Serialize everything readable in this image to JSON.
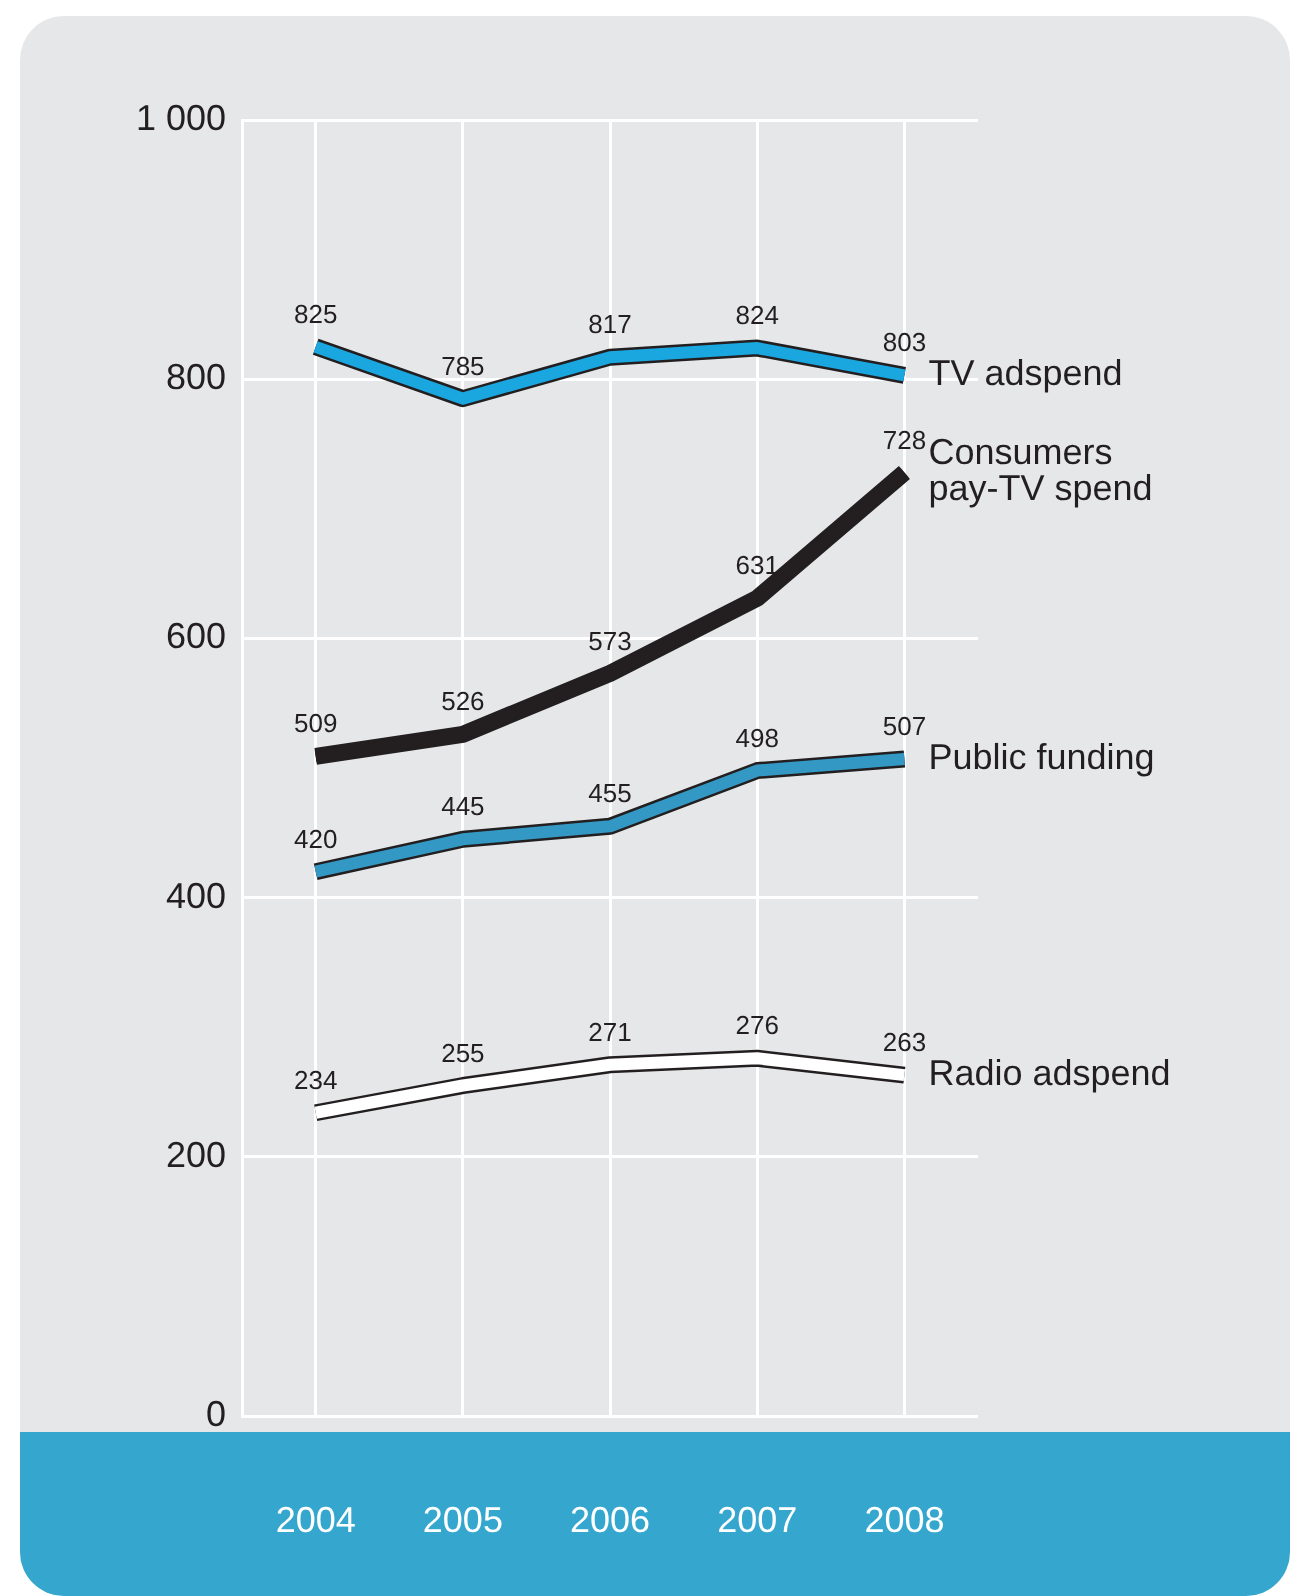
{
  "chart_data": {
    "type": "line",
    "categories": [
      "2004",
      "2005",
      "2006",
      "2007",
      "2008"
    ],
    "series": [
      {
        "name": "TV adspend",
        "color": "#1aa7e0",
        "values": [
          825,
          785,
          817,
          824,
          803
        ]
      },
      {
        "name": "Consumers pay-TV spend",
        "color": "#231f20",
        "values": [
          509,
          526,
          573,
          631,
          728
        ]
      },
      {
        "name": "Public funding",
        "color": "#3399c4",
        "values": [
          420,
          445,
          455,
          498,
          507
        ]
      },
      {
        "name": "Radio adspend",
        "color": "#ffffff",
        "values": [
          234,
          255,
          271,
          276,
          263
        ]
      }
    ],
    "ylim": [
      0,
      1000
    ],
    "yticks": [
      0,
      200,
      400,
      600,
      800,
      {
        "value": 1000,
        "label": "1 000"
      }
    ],
    "grid": true,
    "legend": false,
    "data_labels": true,
    "marker": "none",
    "line_style": "solid"
  }
}
